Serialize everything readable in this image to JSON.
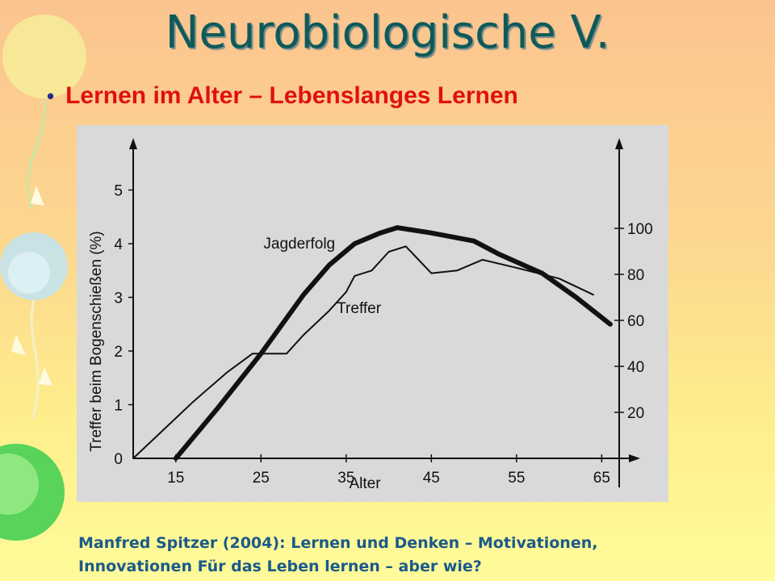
{
  "slide": {
    "title": "Neurobiologische V.",
    "bullet": "Lernen im Alter – Lebenslanges Lernen",
    "citation_line1": "Manfred Spitzer (2004): Lernen und Denken – Motivationen,",
    "citation_line2": "Innovationen Für das Leben lernen – aber wie?"
  },
  "chart_data": {
    "type": "line",
    "xlabel": "Alter",
    "ylabel": "Treffer beim Bogenschießen (%)",
    "x_ticks": [
      15,
      25,
      35,
      45,
      55,
      65
    ],
    "xlim": [
      10,
      68
    ],
    "ylim_left": [
      0,
      5
    ],
    "y_ticks_left": [
      0,
      1,
      2,
      3,
      4,
      5
    ],
    "ylim_right": [
      0,
      100
    ],
    "y_ticks_right": [
      20,
      40,
      60,
      80,
      100
    ],
    "grid": false,
    "series": [
      {
        "name": "Treffer",
        "axis": "left",
        "line_width": "thin",
        "x": [
          10,
          13,
          17,
          21,
          24,
          26,
          28,
          30,
          33,
          35,
          36,
          38,
          40,
          42,
          45,
          48,
          51,
          55,
          60,
          64
        ],
        "y": [
          0,
          0.45,
          1.05,
          1.6,
          1.95,
          1.95,
          1.95,
          2.3,
          2.75,
          3.1,
          3.4,
          3.5,
          3.85,
          3.95,
          3.45,
          3.5,
          3.7,
          3.55,
          3.35,
          3.05
        ]
      },
      {
        "name": "Jagderfolg",
        "axis": "left",
        "line_width": "thick",
        "x": [
          15,
          20,
          25,
          30,
          33,
          36,
          39,
          41,
          45,
          50,
          53,
          58,
          62,
          66
        ],
        "y": [
          0,
          0.95,
          1.95,
          3.05,
          3.6,
          4.0,
          4.2,
          4.3,
          4.2,
          4.05,
          3.8,
          3.45,
          3.0,
          2.5
        ]
      }
    ]
  }
}
